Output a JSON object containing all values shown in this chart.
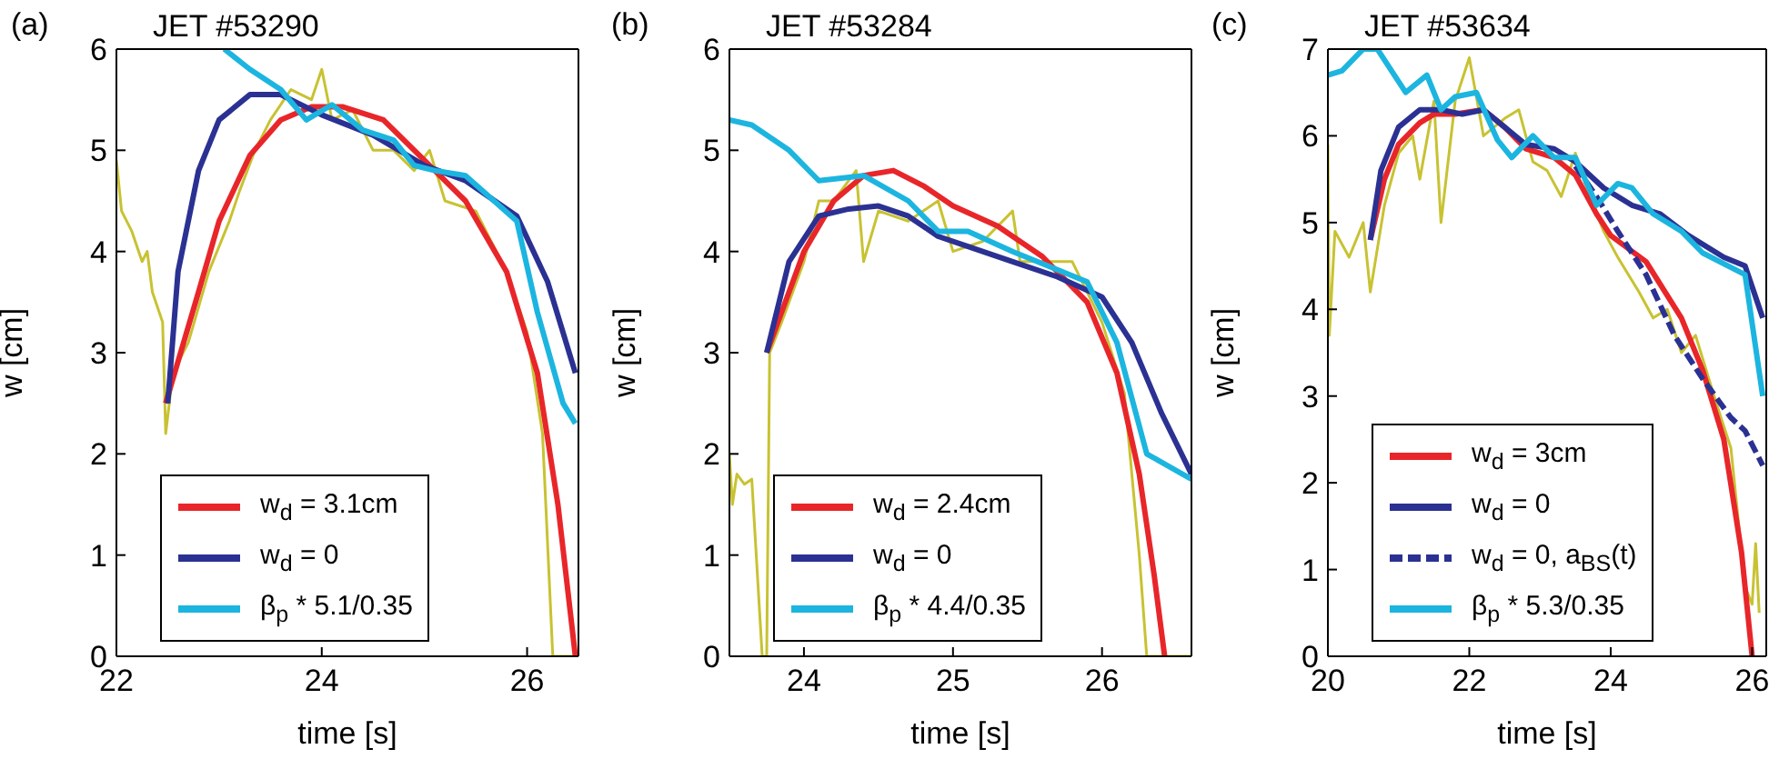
{
  "chart_data": [
    {
      "type": "line",
      "title": "JET #53290",
      "annotations": [
        "(a)"
      ],
      "xlabel": "time  [s]",
      "ylabel": "w [cm]",
      "xlim": [
        22,
        26.5
      ],
      "xticks": [
        22,
        24,
        26
      ],
      "ylim": [
        0,
        6
      ],
      "yticks": [
        0,
        1,
        2,
        3,
        4,
        5,
        6
      ],
      "grid": false,
      "legend": "bottom left",
      "marker": "none",
      "series": [
        {
          "color": "#c8c232",
          "x": [
            22.0,
            22.05,
            22.15,
            22.25,
            22.3,
            22.35,
            22.45,
            22.48,
            22.55,
            22.7,
            22.9,
            23.1,
            23.2,
            23.35,
            23.5,
            23.7,
            23.9,
            24.0,
            24.1,
            24.3,
            24.5,
            24.7,
            24.9,
            25.05,
            25.2,
            25.5,
            25.8,
            26.0,
            26.15,
            26.25,
            26.47
          ],
          "values": [
            4.9,
            4.4,
            4.2,
            3.9,
            4.0,
            3.6,
            3.3,
            2.2,
            2.8,
            3.1,
            3.8,
            4.3,
            4.6,
            5.0,
            5.3,
            5.6,
            5.5,
            5.8,
            5.3,
            5.4,
            5.0,
            5.0,
            4.8,
            5.0,
            4.5,
            4.4,
            3.8,
            3.2,
            2.2,
            0,
            0
          ]
        },
        {
          "name": "w$_{d}$ = 3.1cm",
          "color": "#e8262a",
          "x": [
            22.48,
            22.8,
            23.0,
            23.3,
            23.6,
            23.9,
            24.2,
            24.6,
            25.0,
            25.4,
            25.8,
            26.1,
            26.3,
            26.47
          ],
          "values": [
            2.5,
            3.6,
            4.3,
            4.95,
            5.3,
            5.43,
            5.43,
            5.3,
            4.9,
            4.5,
            3.8,
            2.8,
            1.5,
            0
          ]
        },
        {
          "name": "w$_{d}$ = 0",
          "color": "#2b3192",
          "x": [
            22.5,
            22.6,
            22.8,
            23.0,
            23.3,
            23.6,
            24.0,
            24.5,
            25.0,
            25.4,
            25.9,
            26.2,
            26.47
          ],
          "values": [
            2.5,
            3.8,
            4.8,
            5.3,
            5.55,
            5.55,
            5.35,
            5.15,
            4.85,
            4.7,
            4.35,
            3.7,
            2.8
          ]
        },
        {
          "name": "β$_{p}$ * 5.1/0.35",
          "color": "#1cb5e0",
          "x": [
            23.05,
            23.3,
            23.6,
            23.85,
            24.1,
            24.4,
            24.7,
            24.9,
            25.1,
            25.4,
            25.9,
            26.1,
            26.35,
            26.47
          ],
          "values": [
            6.0,
            5.8,
            5.6,
            5.3,
            5.45,
            5.2,
            5.1,
            4.85,
            4.8,
            4.75,
            4.3,
            3.4,
            2.5,
            2.3
          ]
        }
      ]
    },
    {
      "type": "line",
      "title": "JET #53284",
      "annotations": [
        "(b)"
      ],
      "xlabel": "time [s]",
      "ylabel": "w [cm]",
      "xlim": [
        23.5,
        26.6
      ],
      "xticks": [
        24,
        25,
        26
      ],
      "ylim": [
        0,
        6
      ],
      "yticks": [
        0,
        1,
        2,
        3,
        4,
        5,
        6
      ],
      "grid": false,
      "legend": "bottom left",
      "marker": "none",
      "series": [
        {
          "color": "#c8c232",
          "x": [
            23.5,
            23.52,
            23.55,
            23.6,
            23.65,
            23.7,
            23.72,
            23.75,
            23.77,
            23.85,
            24.0,
            24.1,
            24.2,
            24.35,
            24.4,
            24.5,
            24.7,
            24.9,
            25.0,
            25.2,
            25.4,
            25.45,
            25.6,
            25.8,
            26.0,
            26.15,
            26.25,
            26.3,
            26.6
          ],
          "values": [
            2.0,
            1.5,
            1.8,
            1.7,
            1.75,
            0.5,
            0,
            0,
            3.0,
            3.3,
            3.9,
            4.5,
            4.5,
            4.8,
            3.9,
            4.4,
            4.3,
            4.5,
            4.0,
            4.1,
            4.4,
            3.9,
            3.9,
            3.9,
            3.3,
            2.6,
            1.0,
            0,
            0
          ]
        },
        {
          "name": "w$_{d}$ = 2.4cm",
          "color": "#e8262a",
          "x": [
            23.75,
            24.0,
            24.2,
            24.4,
            24.6,
            24.8,
            25.0,
            25.3,
            25.6,
            25.9,
            26.1,
            26.25,
            26.35,
            26.42
          ],
          "values": [
            3.0,
            4.0,
            4.5,
            4.75,
            4.8,
            4.65,
            4.45,
            4.25,
            3.95,
            3.5,
            2.8,
            1.8,
            0.8,
            0
          ]
        },
        {
          "name": "w$_{d}$ = 0",
          "color": "#2b3192",
          "x": [
            23.75,
            23.9,
            24.1,
            24.3,
            24.5,
            24.7,
            24.9,
            25.1,
            25.4,
            25.7,
            26.0,
            26.2,
            26.4,
            26.6
          ],
          "values": [
            3.0,
            3.9,
            4.35,
            4.42,
            4.45,
            4.35,
            4.15,
            4.05,
            3.9,
            3.75,
            3.55,
            3.1,
            2.4,
            1.8
          ]
        },
        {
          "name": "β$_{p}$ * 4.4/0.35",
          "color": "#1cb5e0",
          "x": [
            23.5,
            23.65,
            23.9,
            24.1,
            24.4,
            24.7,
            24.9,
            25.1,
            25.4,
            25.9,
            26.1,
            26.3,
            26.6
          ],
          "values": [
            5.3,
            5.25,
            5.0,
            4.7,
            4.75,
            4.5,
            4.2,
            4.2,
            4.0,
            3.7,
            3.1,
            2.0,
            1.75
          ]
        }
      ]
    },
    {
      "type": "line",
      "title": "JET #53634",
      "annotations": [
        "(c)"
      ],
      "xlabel": "time [s]",
      "ylabel": "w [cm]",
      "xlim": [
        20,
        26.2
      ],
      "xticks": [
        20,
        22,
        24,
        26
      ],
      "ylim": [
        0,
        7
      ],
      "yticks": [
        0,
        1,
        2,
        3,
        4,
        5,
        6,
        7
      ],
      "grid": false,
      "legend": "bottom left",
      "marker": "none",
      "series": [
        {
          "color": "#c8c232",
          "x": [
            20.0,
            20.02,
            20.1,
            20.3,
            20.5,
            20.6,
            20.8,
            21.0,
            21.2,
            21.3,
            21.5,
            21.6,
            21.8,
            22.0,
            22.2,
            22.5,
            22.7,
            22.9,
            23.1,
            23.3,
            23.5,
            23.7,
            23.9,
            24.1,
            24.4,
            24.6,
            24.8,
            25.0,
            25.2,
            25.5,
            25.7,
            25.9,
            26.0,
            26.05,
            26.1
          ],
          "values": [
            5.9,
            3.7,
            4.9,
            4.6,
            5.0,
            4.2,
            5.2,
            5.8,
            6.0,
            5.5,
            6.4,
            5.0,
            6.4,
            6.9,
            6.0,
            6.2,
            6.3,
            5.7,
            5.6,
            5.3,
            5.8,
            5.3,
            4.9,
            4.6,
            4.2,
            3.9,
            4.0,
            3.5,
            3.7,
            2.9,
            2.4,
            0.8,
            0.6,
            1.3,
            0.5
          ]
        },
        {
          "name": "w$_{d}$ = 3cm",
          "color": "#e8262a",
          "x": [
            20.6,
            20.8,
            21.0,
            21.3,
            21.5,
            21.8,
            22.2,
            22.5,
            22.8,
            23.2,
            23.5,
            23.8,
            24.0,
            24.5,
            25.0,
            25.3,
            25.6,
            25.85,
            26.0
          ],
          "values": [
            4.8,
            5.5,
            5.9,
            6.15,
            6.25,
            6.25,
            6.3,
            6.1,
            5.85,
            5.75,
            5.55,
            5.1,
            4.85,
            4.55,
            3.9,
            3.3,
            2.5,
            1.2,
            0
          ]
        },
        {
          "name": "w$_{d}$ = 0",
          "color": "#2b3192",
          "x": [
            20.6,
            20.75,
            21.0,
            21.3,
            21.6,
            21.9,
            22.2,
            22.5,
            22.8,
            23.2,
            23.5,
            23.9,
            24.3,
            24.7,
            25.1,
            25.6,
            25.9,
            26.15
          ],
          "values": [
            4.8,
            5.6,
            6.1,
            6.3,
            6.3,
            6.25,
            6.3,
            6.1,
            5.9,
            5.85,
            5.7,
            5.4,
            5.2,
            5.1,
            4.85,
            4.6,
            4.5,
            3.9
          ]
        },
        {
          "name": "w$_{d}$ = 0, a$_{BS}$(t)",
          "color": "#2b3192",
          "line_style": "dashed",
          "x": [
            23.5,
            23.8,
            24.1,
            24.5,
            24.9,
            25.3,
            25.7,
            25.9,
            26.15
          ],
          "values": [
            5.65,
            5.3,
            4.9,
            4.4,
            3.7,
            3.2,
            2.75,
            2.6,
            2.2
          ]
        },
        {
          "name": "β$_{p}$ * 5.3/0.35",
          "color": "#1cb5e0",
          "x": [
            20.0,
            20.2,
            20.5,
            20.7,
            21.1,
            21.4,
            21.6,
            21.8,
            22.1,
            22.4,
            22.6,
            22.9,
            23.2,
            23.5,
            23.8,
            24.1,
            24.3,
            24.6,
            25.0,
            25.3,
            25.9,
            26.15
          ],
          "values": [
            6.7,
            6.75,
            7.0,
            7.0,
            6.5,
            6.7,
            6.3,
            6.45,
            6.5,
            5.95,
            5.75,
            6.0,
            5.75,
            5.75,
            5.2,
            5.45,
            5.4,
            5.1,
            4.9,
            4.65,
            4.4,
            3.0
          ]
        }
      ]
    }
  ]
}
